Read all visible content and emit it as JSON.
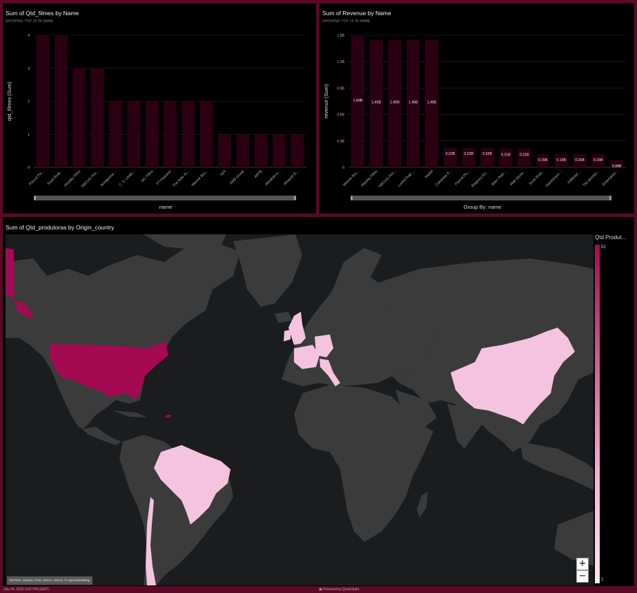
{
  "chart1": {
    "title": "Sum of Qtd_filmes by Name",
    "subtitle": "SHOWING TOP 15 IN NAME",
    "chart_data": {
      "type": "bar",
      "categories": [
        "Pascal Pic...",
        "Scott Rudi...",
        "Heyday Films",
        "NBCUG Pict...",
        "Annapurna ...",
        "C. S. Lewis...",
        "IAC Films",
        "FT Features",
        "The New Yo...",
        "Warner Bro...",
        "A24",
        "AMB Group",
        "ARTE",
        "Absolute-e...",
        "Amazon E..."
      ],
      "values": [
        4,
        4,
        3,
        3,
        2,
        2,
        2,
        2,
        2,
        2,
        1,
        1,
        1,
        1,
        1
      ],
      "ylabel": "qtd_filmes (Sum)",
      "xlabel": "name",
      "yticks": [
        "0",
        "1",
        "2",
        "3",
        "4"
      ],
      "ylim": [
        0,
        4
      ],
      "bar_color": "#2b0012"
    }
  },
  "chart2": {
    "title": "Sum of Revenue by Name",
    "subtitle": "SHOWING TOP 15 IN NAME",
    "chart_data": {
      "type": "bar",
      "categories": [
        "Warner Bro...",
        "Heyday Films",
        "NBCUG Pict...",
        "LuckyChap ...",
        "Mattel",
        "Columbia P...",
        "Pascal Pic...",
        "Regency En...",
        "Marc Platt ...",
        "Walt Disne...",
        "Scott Rudi...",
        "Hutchinson ...",
        "Kaferapi ...",
        "The Montec...",
        "Entertainm..."
      ],
      "values": [
        1.49,
        1.45,
        1.45,
        1.45,
        1.45,
        0.22,
        0.22,
        0.22,
        0.21,
        0.21,
        0.15,
        0.15,
        0.15,
        0.15,
        0.08
      ],
      "labels": [
        "1.49B",
        "1.45B",
        "1.45B",
        "1.45B",
        "1.45B",
        "0.22B",
        "0.22B",
        "0.22B",
        "0.21B",
        "0.21B",
        "0.15B",
        "0.15B",
        "0.15B",
        "0.15B",
        "0.08B"
      ],
      "ylabel": "revenue (Sum)",
      "xlabel": "Group By: name",
      "yticks": [
        "0",
        "0.3B",
        "0.6B",
        "0.9B",
        "1.2B",
        "1.5B"
      ],
      "ylim": [
        0,
        1.5
      ],
      "bar_color": "#2b0012"
    }
  },
  "map": {
    "title": "Sum of Qtd_produtoras by Origin_country",
    "legend_title": "Qtd Produt...",
    "legend_max": "52",
    "legend_min": "1",
    "zoom_in": "+",
    "zoom_out": "−",
    "attribution": "TomTom, Garmin, FAO, NOAA, USGS, © OpenStreetMap",
    "ocean_color": "#1b1c1e",
    "land_color": "#3b3b3b",
    "high_color": "#a40a52",
    "low_color": "#f3c3e0"
  },
  "footer": {
    "timestamp": "July 24, 2025 3:02 PM (GMT)",
    "powered_by": "Powered by QuickSight"
  }
}
